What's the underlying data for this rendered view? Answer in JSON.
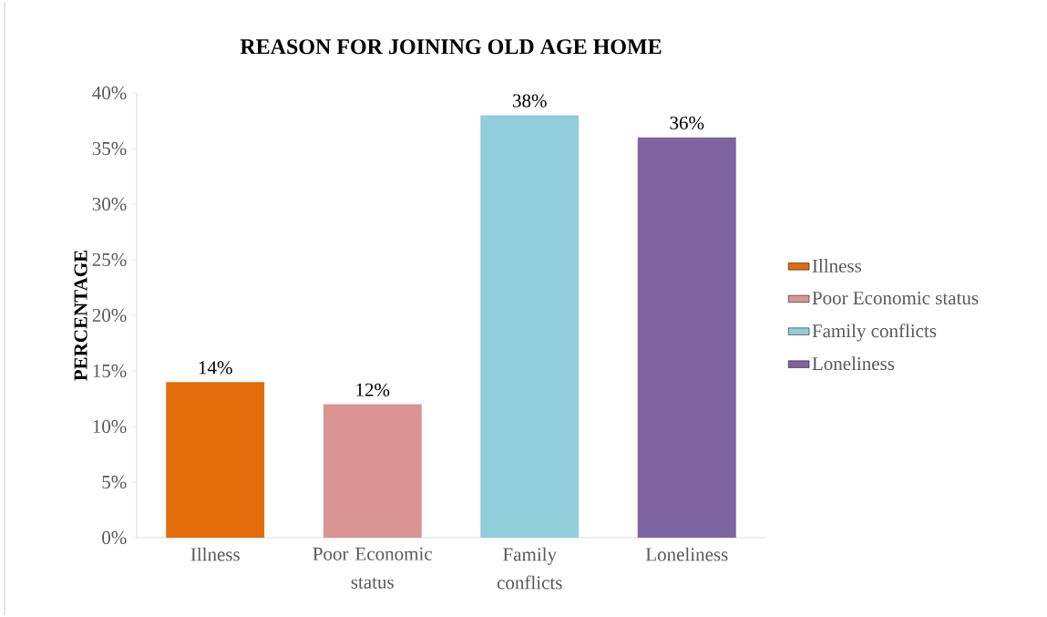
{
  "chart_data": {
    "type": "bar",
    "title": "REASON FOR JOINING OLD AGE HOME",
    "ylabel": "PERCENTAGE",
    "categories": [
      "Illness",
      "Poor Economic status",
      "Family conflicts",
      "Loneliness"
    ],
    "series": [
      {
        "name": "Illness",
        "color": "#e36c0a",
        "values": [
          14,
          null,
          null,
          null
        ],
        "value_labels": [
          "14%",
          null,
          null,
          null
        ]
      },
      {
        "name": "Poor Economic status",
        "color": "#d99594",
        "values": [
          null,
          12,
          null,
          null
        ],
        "value_labels": [
          null,
          "12%",
          null,
          null
        ]
      },
      {
        "name": "Family conflicts",
        "color": "#92cddc",
        "values": [
          null,
          null,
          38,
          null
        ],
        "value_labels": [
          null,
          null,
          "38%",
          null
        ]
      },
      {
        "name": "Loneliness",
        "color": "#8064a2",
        "values": [
          null,
          null,
          null,
          36
        ],
        "value_labels": [
          null,
          null,
          null,
          "36%"
        ]
      }
    ],
    "ylim": [
      0,
      40
    ],
    "yticks": [
      {
        "value": 0,
        "label": "0%"
      },
      {
        "value": 5,
        "label": "5%"
      },
      {
        "value": 10,
        "label": "10%"
      },
      {
        "value": 15,
        "label": "15%"
      },
      {
        "value": 20,
        "label": "20%"
      },
      {
        "value": 25,
        "label": "25%"
      },
      {
        "value": 30,
        "label": "30%"
      },
      {
        "value": 35,
        "label": "35%"
      },
      {
        "value": 40,
        "label": "40%"
      }
    ],
    "grid": false,
    "legend": "right"
  }
}
